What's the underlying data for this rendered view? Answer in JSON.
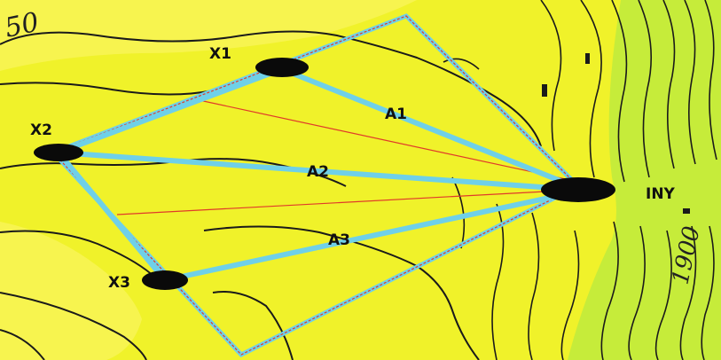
{
  "map": {
    "background_color": "#f0f22a",
    "pale_fill_color": "#f7f44f",
    "green_tint_color": "#c6ec3a",
    "contour_color": "#1a1a1a",
    "beam_color": "#6fd0e8",
    "beam_core_color": "#3fb0dc",
    "red_line_color": "#e03a2a",
    "marker_color": "#0a0a0a"
  },
  "labels": {
    "x1": "X1",
    "x2": "X2",
    "x3": "X3",
    "a1": "A1",
    "a2": "A2",
    "a3": "A3",
    "iny": "INY"
  },
  "contour_labels": {
    "top_left": "50",
    "bottom_right": "1900"
  }
}
